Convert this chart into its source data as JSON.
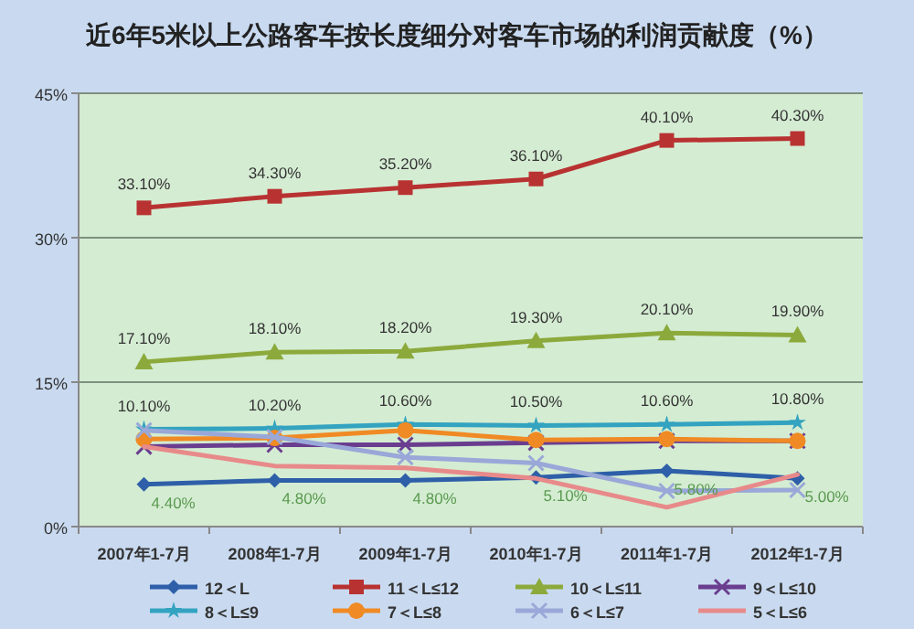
{
  "chart_data": {
    "type": "line",
    "title": "近6年5米以上公路客车按长度细分对客车市场的利润贡献度（%）",
    "categories": [
      "2007年1-7月",
      "2008年1-7月",
      "2009年1-7月",
      "2010年1-7月",
      "2011年1-7月",
      "2012年1-7月"
    ],
    "ylim": [
      0,
      45
    ],
    "yticks": [
      {
        "value": 0,
        "label": "0%"
      },
      {
        "value": 15,
        "label": "15%"
      },
      {
        "value": 30,
        "label": "30%"
      },
      {
        "value": 45,
        "label": "45%"
      }
    ],
    "grid": "y",
    "legend": "bottom",
    "series": [
      {
        "name": "12＜L",
        "color": "#2e5fa8",
        "marker": "diamond",
        "values": [
          4.4,
          4.8,
          4.8,
          5.1,
          5.8,
          5.0
        ],
        "value_labels": [
          "4.40%",
          "4.80%",
          "4.80%",
          "5.10%",
          "5.80%",
          "5.00%"
        ]
      },
      {
        "name": "11＜L≤12",
        "color": "#b83232",
        "marker": "square",
        "values": [
          33.1,
          34.3,
          35.2,
          36.1,
          40.1,
          40.3
        ],
        "value_labels": [
          "33.10%",
          "34.30%",
          "35.20%",
          "36.10%",
          "40.10%",
          "40.30%"
        ]
      },
      {
        "name": "10＜L≤11",
        "color": "#8caa3c",
        "marker": "triangle",
        "values": [
          17.1,
          18.1,
          18.2,
          19.3,
          20.1,
          19.9
        ],
        "value_labels": [
          "17.10%",
          "18.10%",
          "18.20%",
          "19.30%",
          "20.10%",
          "19.90%"
        ]
      },
      {
        "name": "9＜L≤10",
        "color": "#6a3d8f",
        "marker": "cross",
        "values": [
          8.3,
          8.5,
          8.5,
          8.7,
          8.9,
          8.9
        ]
      },
      {
        "name": "8＜L≤9",
        "color": "#33a3c0",
        "marker": "star",
        "values": [
          10.1,
          10.2,
          10.6,
          10.5,
          10.6,
          10.8
        ],
        "value_labels": [
          "10.10%",
          "10.20%",
          "10.60%",
          "10.50%",
          "10.60%",
          "10.80%"
        ]
      },
      {
        "name": "7＜L≤8",
        "color": "#f08a24",
        "marker": "circle",
        "values": [
          9.1,
          9.2,
          10.0,
          9.0,
          9.1,
          8.9
        ]
      },
      {
        "name": "6＜L≤7",
        "color": "#99a8d8",
        "marker": "cross",
        "values": [
          10.0,
          9.3,
          7.2,
          6.6,
          3.7,
          3.8
        ]
      },
      {
        "name": "5＜L≤6",
        "color": "#e88a8a",
        "marker": "none",
        "values": [
          8.3,
          6.3,
          6.1,
          5.0,
          2.0,
          5.4
        ]
      }
    ]
  }
}
